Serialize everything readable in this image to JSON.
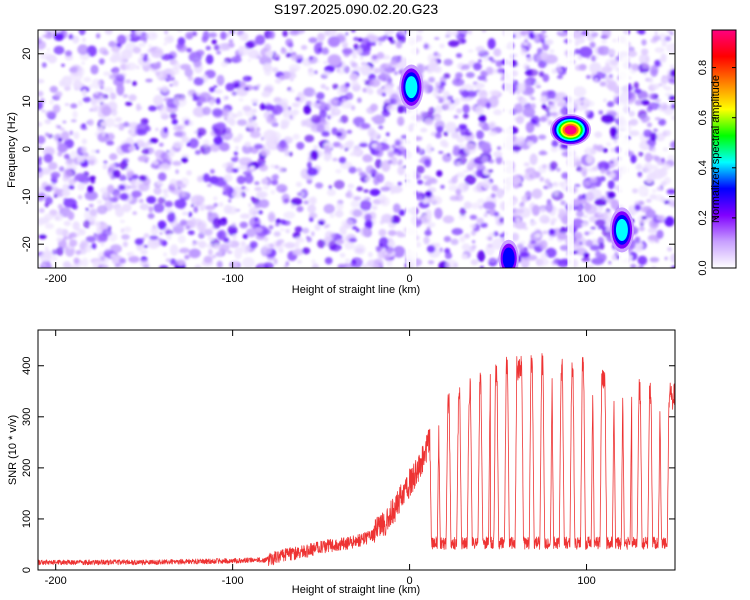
{
  "title": "S197.2025.090.02.20.G23",
  "chart_data": [
    {
      "type": "heatmap",
      "xlabel": "Height of straight line (km)",
      "ylabel": "Frequency (Hz)",
      "xlim": [
        -210,
        150
      ],
      "ylim": [
        -25,
        25
      ],
      "x_ticks": [
        -200,
        -100,
        0,
        100
      ],
      "y_ticks": [
        -20,
        -10,
        0,
        10,
        20
      ],
      "colorbar": {
        "label": "Normalized spectral amplitude",
        "range": [
          0.0,
          0.95
        ],
        "ticks": [
          0.0,
          0.2,
          0.4,
          0.6,
          0.8
        ],
        "colors": [
          "#ffffff",
          "#c8a0ff",
          "#8000ff",
          "#0000ff",
          "#00ffff",
          "#00ff00",
          "#ffff00",
          "#ff8000",
          "#ff0000",
          "#ff0080"
        ]
      },
      "gaps_x": [
        1,
        56,
        91,
        121
      ],
      "hotspots": [
        {
          "x": 91,
          "y": 4,
          "amplitude": 0.9
        },
        {
          "x": 1,
          "y": 13,
          "amplitude": 0.45
        },
        {
          "x": 120,
          "y": -17,
          "amplitude": 0.4
        },
        {
          "x": 56,
          "y": -23,
          "amplitude": 0.35
        }
      ]
    },
    {
      "type": "line",
      "xlabel": "Height of straight line (km)",
      "ylabel": "SNR (10 * v/v)",
      "xlim": [
        -210,
        150
      ],
      "ylim": [
        0,
        470
      ],
      "x_ticks": [
        -200,
        -100,
        0,
        100
      ],
      "y_ticks": [
        0,
        100,
        200,
        300,
        400
      ],
      "color": "#ee3333",
      "profile": [
        [
          -210,
          15
        ],
        [
          -150,
          15
        ],
        [
          -100,
          18
        ],
        [
          -80,
          20
        ],
        [
          -70,
          30
        ],
        [
          -60,
          35
        ],
        [
          -50,
          45
        ],
        [
          -40,
          50
        ],
        [
          -30,
          55
        ],
        [
          -20,
          70
        ],
        [
          -15,
          90
        ],
        [
          -10,
          110
        ],
        [
          -5,
          140
        ],
        [
          0,
          170
        ],
        [
          5,
          200
        ],
        [
          10,
          240
        ],
        [
          15,
          290
        ],
        [
          20,
          320
        ],
        [
          25,
          330
        ],
        [
          30,
          340
        ],
        [
          40,
          360
        ],
        [
          50,
          390
        ],
        [
          60,
          395
        ],
        [
          70,
          400
        ],
        [
          80,
          400
        ],
        [
          90,
          395
        ],
        [
          100,
          390
        ],
        [
          110,
          380
        ],
        [
          120,
          370
        ],
        [
          130,
          350
        ],
        [
          140,
          345
        ],
        [
          150,
          340
        ]
      ],
      "dips_x": [
        14,
        19,
        25,
        31,
        37,
        43,
        46,
        52,
        58,
        66,
        72,
        78,
        83,
        89,
        95,
        101,
        106,
        113,
        118,
        123,
        127,
        133,
        139,
        144
      ]
    }
  ]
}
